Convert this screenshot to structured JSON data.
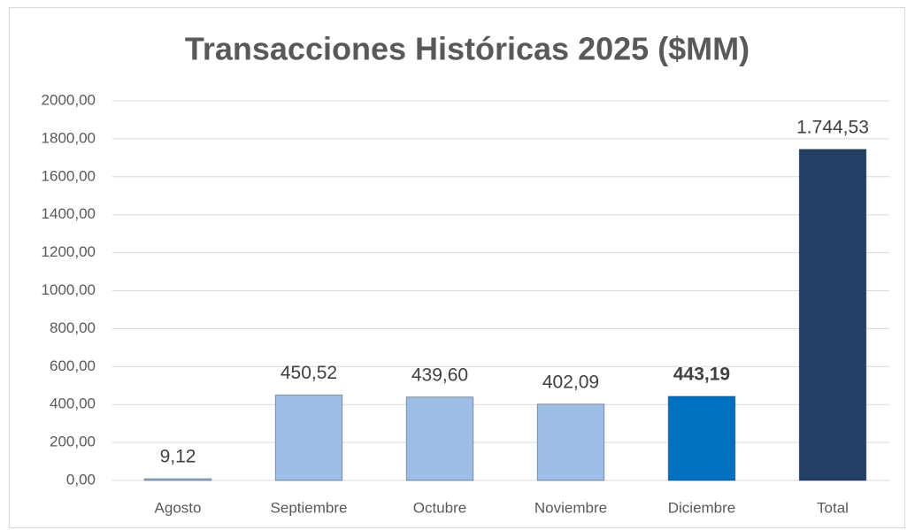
{
  "chart_data": {
    "type": "bar",
    "title": "Transacciones Históricas 2025 ($MM)",
    "categories": [
      "Agosto",
      "Septiembre",
      "Octubre",
      "Noviembre",
      "Diciembre",
      "Total"
    ],
    "values": [
      9.12,
      450.52,
      439.6,
      402.09,
      443.19,
      1744.53
    ],
    "value_labels": [
      "9,12",
      "450,52",
      "439,60",
      "402,09",
      "443,19",
      "1.744,53"
    ],
    "value_label_bold": [
      false,
      false,
      false,
      false,
      true,
      false
    ],
    "colors": [
      "#9dbde6",
      "#9dbde6",
      "#9dbde6",
      "#9dbde6",
      "#0070c0",
      "#233f66"
    ],
    "ylim": [
      0,
      2000
    ],
    "yticks": [
      {
        "value": 0,
        "label": "0,00"
      },
      {
        "value": 200,
        "label": "200,00"
      },
      {
        "value": 400,
        "label": "400,00"
      },
      {
        "value": 600,
        "label": "600,00"
      },
      {
        "value": 800,
        "label": "800,00"
      },
      {
        "value": 1000,
        "label": "1000,00"
      },
      {
        "value": 1200,
        "label": "1200,00"
      },
      {
        "value": 1400,
        "label": "1400,00"
      },
      {
        "value": 1600,
        "label": "1600,00"
      },
      {
        "value": 1800,
        "label": "1800,00"
      },
      {
        "value": 2000,
        "label": "2000,00"
      }
    ],
    "grid": true
  }
}
